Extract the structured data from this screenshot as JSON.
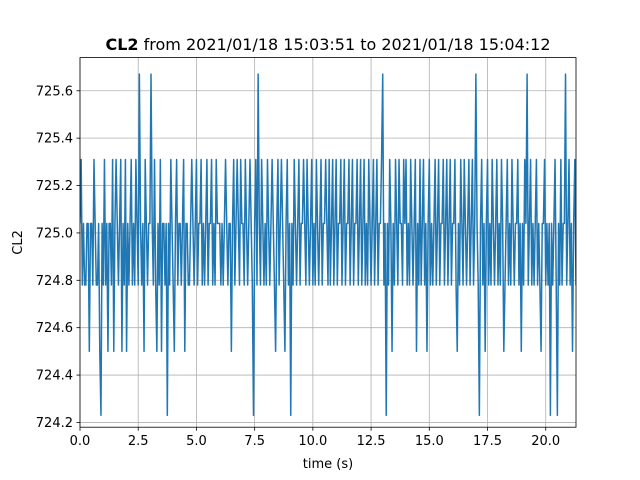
{
  "chart_data": {
    "type": "line",
    "title_bold": "CL2",
    "title_rest": " from 2021/01/18 15:03:51 to 2021/01/18 15:04:12",
    "xlabel": "time (s)",
    "ylabel": "CL2",
    "xlim": [
      0,
      21.3
    ],
    "ylim": [
      724.18,
      725.74
    ],
    "grid": true,
    "x_ticks": [
      0.0,
      2.5,
      5.0,
      7.5,
      10.0,
      12.5,
      15.0,
      17.5,
      20.0
    ],
    "x_tick_labels": [
      "0.0",
      "2.5",
      "5.0",
      "7.5",
      "10.0",
      "12.5",
      "15.0",
      "17.5",
      "20.0"
    ],
    "y_ticks": [
      724.2,
      724.4,
      724.6,
      724.8,
      725.0,
      725.2,
      725.4,
      725.6
    ],
    "y_tick_labels": [
      "724.2",
      "724.4",
      "724.6",
      "724.8",
      "725.0",
      "725.2",
      "725.4",
      "725.6"
    ],
    "color": "#1f77b4",
    "series": [
      {
        "dt": 0.05,
        "values": [
          725.04,
          725.31,
          724.78,
          725.04,
          724.78,
          724.78,
          725.04,
          725.04,
          724.5,
          725.04,
          725.04,
          724.78,
          725.31,
          725.04,
          724.78,
          724.78,
          725.04,
          724.5,
          724.23,
          725.04,
          724.78,
          725.31,
          724.78,
          725.04,
          724.5,
          725.04,
          725.04,
          724.78,
          725.31,
          724.5,
          725.04,
          725.31,
          725.04,
          724.78,
          725.04,
          725.31,
          724.5,
          725.04,
          724.78,
          725.31,
          724.5,
          725.04,
          724.78,
          725.04,
          725.31,
          724.78,
          725.04,
          724.78,
          725.31,
          725.04,
          724.78,
          725.67,
          725.04,
          724.78,
          725.04,
          724.5,
          725.31,
          725.04,
          724.78,
          725.04,
          725.04,
          725.67,
          725.04,
          724.78,
          725.31,
          724.78,
          724.5,
          725.04,
          724.78,
          725.31,
          724.5,
          725.04,
          725.04,
          724.78,
          725.04,
          724.23,
          725.04,
          724.78,
          725.31,
          725.04,
          724.78,
          724.5,
          725.04,
          725.31,
          724.78,
          725.04,
          725.04,
          724.78,
          725.04,
          725.31,
          724.5,
          725.04,
          725.04,
          724.78,
          724.78,
          725.04,
          725.31,
          725.04,
          724.78,
          725.04,
          725.31,
          724.78,
          725.04,
          725.04,
          725.31,
          724.78,
          725.04,
          724.78,
          725.04,
          725.31,
          724.78,
          725.04,
          725.04,
          725.31,
          724.78,
          725.04,
          724.78,
          725.31,
          725.04,
          725.04,
          725.04,
          724.78,
          725.04,
          724.78,
          725.04,
          725.31,
          725.04,
          724.78,
          725.04,
          725.04,
          724.5,
          725.04,
          725.31,
          724.78,
          725.04,
          725.31,
          725.04,
          724.78,
          725.31,
          725.04,
          725.04,
          724.78,
          725.31,
          725.04,
          724.78,
          725.04,
          725.31,
          725.04,
          724.78,
          724.23,
          725.04,
          725.31,
          724.78,
          725.67,
          725.04,
          724.78,
          725.31,
          725.04,
          724.78,
          725.04,
          724.78,
          725.31,
          725.04,
          724.78,
          725.04,
          725.31,
          725.04,
          724.78,
          724.5,
          725.04,
          725.31,
          724.78,
          725.04,
          725.31,
          725.04,
          724.78,
          724.5,
          725.04,
          725.31,
          724.78,
          725.04,
          724.23,
          725.04,
          724.78,
          725.31,
          725.04,
          724.78,
          725.04,
          725.31,
          724.78,
          725.04,
          725.04,
          725.31,
          725.04,
          724.78,
          725.31,
          725.04,
          724.78,
          725.04,
          725.31,
          724.78,
          725.04,
          724.78,
          725.31,
          725.04,
          724.78,
          725.04,
          725.31,
          724.78,
          725.04,
          725.04,
          725.31,
          725.04,
          724.78,
          725.31,
          724.78,
          725.04,
          725.31,
          724.78,
          725.04,
          725.31,
          724.78,
          725.04,
          725.04,
          725.31,
          724.78,
          725.04,
          725.31,
          724.78,
          725.04,
          725.04,
          725.31,
          724.78,
          725.04,
          725.31,
          724.78,
          725.04,
          725.04,
          725.31,
          724.78,
          725.04,
          725.31,
          724.78,
          725.04,
          725.31,
          724.78,
          725.04,
          724.78,
          725.31,
          725.04,
          724.78,
          725.04,
          725.31,
          724.78,
          725.04,
          725.31,
          724.78,
          725.04,
          725.04,
          725.31,
          725.67,
          724.78,
          725.04,
          724.23,
          725.04,
          724.78,
          725.31,
          725.04,
          724.5,
          725.04,
          724.78,
          725.31,
          725.04,
          724.78,
          725.31,
          725.04,
          725.04,
          724.78,
          725.31,
          725.04,
          725.31,
          724.78,
          725.04,
          724.78,
          725.31,
          725.04,
          724.78,
          725.04,
          725.31,
          724.5,
          725.04,
          724.78,
          725.31,
          724.78,
          725.04,
          725.31,
          724.78,
          725.04,
          724.5,
          725.04,
          725.31,
          724.78,
          725.04,
          724.78,
          725.04,
          725.31,
          724.78,
          725.04,
          725.31,
          724.78,
          725.04,
          725.04,
          725.31,
          724.78,
          725.04,
          725.31,
          724.78,
          725.04,
          725.31,
          724.78,
          725.04,
          725.04,
          725.31,
          724.78,
          724.5,
          725.04,
          724.78,
          725.31,
          725.04,
          724.78,
          725.31,
          725.04,
          724.78,
          725.04,
          725.31,
          724.78,
          725.04,
          725.31,
          724.78,
          725.04,
          725.67,
          725.04,
          724.78,
          724.23,
          725.04,
          725.31,
          724.78,
          725.04,
          724.5,
          725.04,
          725.31,
          724.78,
          725.04,
          724.78,
          725.31,
          725.04,
          724.78,
          725.04,
          725.31,
          724.78,
          725.04,
          724.78,
          725.31,
          725.04,
          724.5,
          724.78,
          725.04,
          725.31,
          724.78,
          725.04,
          724.78,
          725.31,
          725.04,
          724.78,
          725.04,
          725.04,
          725.31,
          724.78,
          725.04,
          724.5,
          725.04,
          724.78,
          725.31,
          725.04,
          725.67,
          724.78,
          725.04,
          725.31,
          724.78,
          725.04,
          724.78,
          725.04,
          725.31,
          724.78,
          725.04,
          724.78,
          724.5,
          725.04,
          725.04,
          725.31,
          724.78,
          725.04,
          724.78,
          725.04,
          724.23,
          725.04,
          724.78,
          725.04,
          725.31,
          724.78,
          724.23,
          725.04,
          724.78,
          725.31,
          724.78,
          725.04,
          725.04,
          725.67,
          724.78,
          725.04,
          725.31,
          724.78,
          725.04,
          724.5,
          725.04,
          725.31,
          724.78,
          725.04,
          724.78,
          725.31,
          725.04,
          724.78,
          725.04,
          724.5,
          725.04,
          725.31,
          724.78,
          725.04,
          725.31,
          724.78,
          725.04,
          724.78,
          725.31,
          725.04,
          724.5,
          725.04,
          725.31,
          725.04,
          724.78,
          725.31,
          725.04,
          725.67
        ]
      }
    ]
  }
}
